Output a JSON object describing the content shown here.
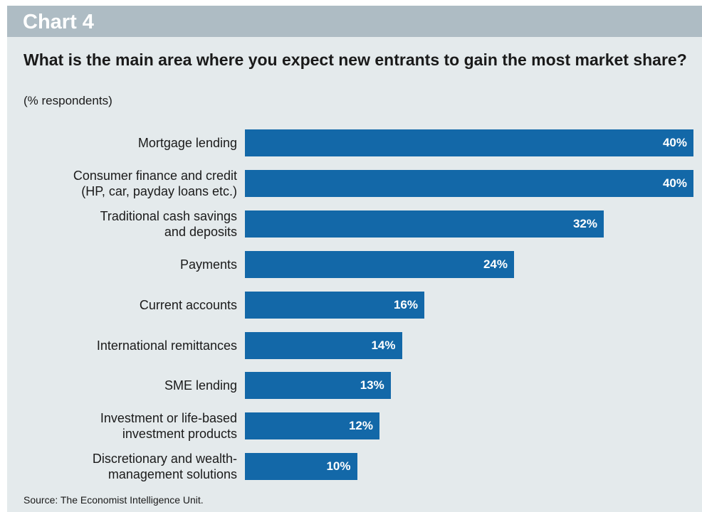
{
  "header": {
    "chart_label": "Chart 4"
  },
  "chart_data": {
    "type": "bar",
    "orientation": "horizontal",
    "title": "What is the main area where you expect new entrants to gain the most market share?",
    "subtitle": "(% respondents)",
    "categories": [
      "Mortgage lending",
      "Consumer finance and credit\n(HP, car, payday loans etc.)",
      "Traditional cash savings\nand deposits",
      "Payments",
      "Current accounts",
      "International remittances",
      "SME lending",
      "Investment or life-based\ninvestment products",
      "Discretionary and wealth-\nmanagement solutions"
    ],
    "values": [
      40,
      40,
      32,
      24,
      16,
      14,
      13,
      12,
      10
    ],
    "value_labels": [
      "40%",
      "40%",
      "32%",
      "24%",
      "16%",
      "14%",
      "13%",
      "12%",
      "10%"
    ],
    "xlim": [
      0,
      40
    ],
    "grid": false,
    "legend": "none",
    "bar_color": "#1368a8"
  },
  "footer": {
    "source": "Source: The Economist Intelligence Unit."
  }
}
